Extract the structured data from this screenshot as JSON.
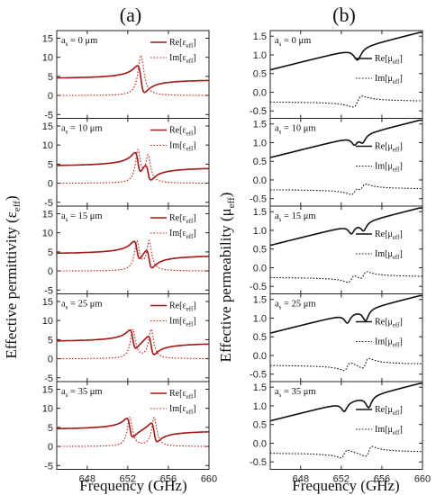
{
  "figure": {
    "left_tag": "(a)",
    "right_tag": "(b)",
    "left_ylabel": "Effective permittivity",
    "left_ylabel_symbol": "(ε",
    "left_ylabel_sub": "eff",
    "left_ylabel_close": ")",
    "right_ylabel": "Effective permeability",
    "right_ylabel_symbol": "(μ",
    "right_ylabel_sub": "eff",
    "right_ylabel_close": ")",
    "xlabel": "Frequency (GHz)"
  },
  "colors": {
    "re_eps": "#a01818",
    "im_eps": "#c02020",
    "mu": "#111111",
    "axis": "#222222"
  },
  "chart_data": [
    {
      "type": "line",
      "panel": "a",
      "y_ticks": [
        15,
        10,
        5,
        0,
        -5
      ],
      "ylim": [
        -6,
        17
      ],
      "x_ticks": [
        648,
        652,
        656,
        660
      ],
      "xlim": [
        645,
        660
      ],
      "annotations": [
        "a",
        "s",
        "= 0 μm"
      ],
      "series": [
        {
          "name": "Re[ε",
          "sub": "eff",
          "tail": "]",
          "style": "solid",
          "kind": "re_eps",
          "resonances": [
            {
              "f0": 653.3,
              "w": 0.35,
              "A": 0.7
            }
          ]
        },
        {
          "name": "Im[ε",
          "sub": "eff",
          "tail": "]",
          "style": "dotted",
          "kind": "im_eps",
          "resonances": [
            {
              "f0": 653.3,
              "w": 0.35,
              "A": 0.7
            }
          ]
        }
      ]
    },
    {
      "type": "line",
      "panel": "a",
      "y_ticks": [
        15,
        10,
        5,
        0,
        -5
      ],
      "ylim": [
        -6,
        17
      ],
      "x_ticks": [
        648,
        652,
        656,
        660
      ],
      "xlim": [
        645,
        660
      ],
      "annotations": [
        "a",
        "s",
        "= 10 μm"
      ],
      "series": [
        {
          "name": "Re[ε",
          "sub": "eff",
          "tail": "]",
          "style": "solid",
          "kind": "re_eps",
          "resonances": [
            {
              "f0": 653.0,
              "w": 0.3,
              "A": 0.55
            },
            {
              "f0": 654.0,
              "w": 0.3,
              "A": 0.45
            }
          ]
        },
        {
          "name": "Im[ε",
          "sub": "eff",
          "tail": "]",
          "style": "dotted",
          "kind": "im_eps",
          "resonances": [
            {
              "f0": 653.0,
              "w": 0.3,
              "A": 0.55
            },
            {
              "f0": 654.0,
              "w": 0.3,
              "A": 0.45
            }
          ]
        }
      ]
    },
    {
      "type": "line",
      "panel": "a",
      "y_ticks": [
        15,
        10,
        5,
        0,
        -5
      ],
      "ylim": [
        -6,
        17
      ],
      "x_ticks": [
        648,
        652,
        656,
        660
      ],
      "xlim": [
        645,
        660
      ],
      "annotations": [
        "a",
        "s",
        "= 15 μm"
      ],
      "series": [
        {
          "name": "Re[ε",
          "sub": "eff",
          "tail": "]",
          "style": "solid",
          "kind": "re_eps",
          "resonances": [
            {
              "f0": 652.9,
              "w": 0.3,
              "A": 0.5
            },
            {
              "f0": 654.1,
              "w": 0.3,
              "A": 0.5
            }
          ]
        },
        {
          "name": "Im[ε",
          "sub": "eff",
          "tail": "]",
          "style": "dotted",
          "kind": "im_eps",
          "resonances": [
            {
              "f0": 652.9,
              "w": 0.3,
              "A": 0.5
            },
            {
              "f0": 654.1,
              "w": 0.3,
              "A": 0.5
            }
          ]
        }
      ]
    },
    {
      "type": "line",
      "panel": "a",
      "y_ticks": [
        15,
        10,
        5,
        0,
        -5
      ],
      "ylim": [
        -6,
        17
      ],
      "x_ticks": [
        648,
        652,
        656,
        660
      ],
      "xlim": [
        645,
        660
      ],
      "annotations": [
        "a",
        "s",
        "= 25 μm"
      ],
      "series": [
        {
          "name": "Re[ε",
          "sub": "eff",
          "tail": "]",
          "style": "solid",
          "kind": "re_eps",
          "resonances": [
            {
              "f0": 652.5,
              "w": 0.3,
              "A": 0.5
            },
            {
              "f0": 654.3,
              "w": 0.3,
              "A": 0.5
            }
          ]
        },
        {
          "name": "Im[ε",
          "sub": "eff",
          "tail": "]",
          "style": "dotted",
          "kind": "im_eps",
          "resonances": [
            {
              "f0": 652.5,
              "w": 0.3,
              "A": 0.5
            },
            {
              "f0": 654.3,
              "w": 0.3,
              "A": 0.5
            }
          ]
        }
      ]
    },
    {
      "type": "line",
      "panel": "a",
      "y_ticks": [
        15,
        10,
        5,
        0,
        -5
      ],
      "ylim": [
        -6,
        17
      ],
      "x_ticks": [
        648,
        652,
        656,
        660
      ],
      "xlim": [
        645,
        660
      ],
      "annotations": [
        "a",
        "s",
        "= 35 μm"
      ],
      "series": [
        {
          "name": "Re[ε",
          "sub": "eff",
          "tail": "]",
          "style": "solid",
          "kind": "re_eps",
          "resonances": [
            {
              "f0": 652.2,
              "w": 0.3,
              "A": 0.5
            },
            {
              "f0": 654.6,
              "w": 0.3,
              "A": 0.5
            }
          ]
        },
        {
          "name": "Im[ε",
          "sub": "eff",
          "tail": "]",
          "style": "dotted",
          "kind": "im_eps",
          "resonances": [
            {
              "f0": 652.2,
              "w": 0.3,
              "A": 0.5
            },
            {
              "f0": 654.6,
              "w": 0.3,
              "A": 0.5
            }
          ]
        }
      ]
    },
    {
      "type": "line",
      "panel": "b",
      "y_ticks": [
        1.5,
        1.0,
        0.5,
        0.0,
        -0.5
      ],
      "ylim": [
        -0.7,
        1.65
      ],
      "y_tick_labels": [
        "1.5",
        "1.0",
        "0.5",
        "0.0",
        "-0.5"
      ],
      "x_ticks": [
        648,
        652,
        656,
        660
      ],
      "xlim": [
        645,
        660
      ],
      "annotations": [
        "a",
        "s",
        "= 0 μm"
      ],
      "series": [
        {
          "name": "Re[μ",
          "sub": "eff",
          "tail": "]",
          "style": "solid",
          "kind": "re_mu",
          "dips": [
            {
              "f0": 653.6,
              "w": 0.45,
              "A": 0.32
            }
          ]
        },
        {
          "name": "Im[μ",
          "sub": "eff",
          "tail": "]",
          "style": "dotted",
          "kind": "im_mu",
          "dips": [
            {
              "f0": 653.6,
              "w": 0.45,
              "A": 0.32
            }
          ]
        }
      ]
    },
    {
      "type": "line",
      "panel": "b",
      "y_ticks": [
        1.5,
        1.0,
        0.5,
        0.0,
        -0.5
      ],
      "ylim": [
        -0.7,
        1.65
      ],
      "y_tick_labels": [
        "1.5",
        "1.0",
        "0.5",
        "0.0",
        "-0.5"
      ],
      "x_ticks": [
        648,
        652,
        656,
        660
      ],
      "xlim": [
        645,
        660
      ],
      "annotations": [
        "a",
        "s",
        "= 10 μm"
      ],
      "series": [
        {
          "name": "Re[μ",
          "sub": "eff",
          "tail": "]",
          "style": "solid",
          "kind": "re_mu",
          "dips": [
            {
              "f0": 653.3,
              "w": 0.35,
              "A": 0.2
            },
            {
              "f0": 654.1,
              "w": 0.35,
              "A": 0.2
            }
          ]
        },
        {
          "name": "Im[μ",
          "sub": "eff",
          "tail": "]",
          "style": "dotted",
          "kind": "im_mu",
          "dips": [
            {
              "f0": 653.3,
              "w": 0.35,
              "A": 0.2
            },
            {
              "f0": 654.1,
              "w": 0.35,
              "A": 0.2
            }
          ]
        }
      ]
    },
    {
      "type": "line",
      "panel": "b",
      "y_ticks": [
        1.5,
        1.0,
        0.5,
        0.0,
        -0.5
      ],
      "ylim": [
        -0.7,
        1.65
      ],
      "y_tick_labels": [
        "1.5",
        "1.0",
        "0.5",
        "0.0",
        "-0.5"
      ],
      "x_ticks": [
        648,
        652,
        656,
        660
      ],
      "xlim": [
        645,
        660
      ],
      "annotations": [
        "a",
        "s",
        "= 15 μm"
      ],
      "series": [
        {
          "name": "Re[μ",
          "sub": "eff",
          "tail": "]",
          "style": "solid",
          "kind": "re_mu",
          "dips": [
            {
              "f0": 653.0,
              "w": 0.35,
              "A": 0.22
            },
            {
              "f0": 654.2,
              "w": 0.35,
              "A": 0.22
            }
          ]
        },
        {
          "name": "Im[μ",
          "sub": "eff",
          "tail": "]",
          "style": "dotted",
          "kind": "im_mu",
          "dips": [
            {
              "f0": 653.0,
              "w": 0.35,
              "A": 0.22
            },
            {
              "f0": 654.2,
              "w": 0.35,
              "A": 0.22
            }
          ]
        }
      ]
    },
    {
      "type": "line",
      "panel": "b",
      "y_ticks": [
        1.5,
        1.0,
        0.5,
        0.0,
        -0.5
      ],
      "ylim": [
        -0.7,
        1.65
      ],
      "y_tick_labels": [
        "1.5",
        "1.0",
        "0.5",
        "0.0",
        "-0.5"
      ],
      "x_ticks": [
        648,
        652,
        656,
        660
      ],
      "xlim": [
        645,
        660
      ],
      "annotations": [
        "a",
        "s",
        "= 25 μm"
      ],
      "series": [
        {
          "name": "Re[μ",
          "sub": "eff",
          "tail": "]",
          "style": "solid",
          "kind": "re_mu",
          "dips": [
            {
              "f0": 652.6,
              "w": 0.35,
              "A": 0.24
            },
            {
              "f0": 654.4,
              "w": 0.35,
              "A": 0.3
            }
          ]
        },
        {
          "name": "Im[μ",
          "sub": "eff",
          "tail": "]",
          "style": "dotted",
          "kind": "im_mu",
          "dips": [
            {
              "f0": 652.6,
              "w": 0.35,
              "A": 0.24
            },
            {
              "f0": 654.4,
              "w": 0.35,
              "A": 0.3
            }
          ]
        }
      ]
    },
    {
      "type": "line",
      "panel": "b",
      "y_ticks": [
        1.5,
        1.0,
        0.5,
        0.0,
        -0.5
      ],
      "ylim": [
        -0.7,
        1.65
      ],
      "y_tick_labels": [
        "1.5",
        "1.0",
        "0.5",
        "0.0",
        "-0.5"
      ],
      "x_ticks": [
        648,
        652,
        656,
        660
      ],
      "xlim": [
        645,
        660
      ],
      "annotations": [
        "a",
        "s",
        "= 35 μm"
      ],
      "series": [
        {
          "name": "Re[μ",
          "sub": "eff",
          "tail": "]",
          "style": "solid",
          "kind": "re_mu",
          "dips": [
            {
              "f0": 652.3,
              "w": 0.35,
              "A": 0.24
            },
            {
              "f0": 654.7,
              "w": 0.35,
              "A": 0.3
            }
          ]
        },
        {
          "name": "Im[μ",
          "sub": "eff",
          "tail": "]",
          "style": "dotted",
          "kind": "im_mu",
          "dips": [
            {
              "f0": 652.3,
              "w": 0.35,
              "A": 0.24
            },
            {
              "f0": 654.7,
              "w": 0.35,
              "A": 0.3
            }
          ]
        }
      ]
    }
  ]
}
